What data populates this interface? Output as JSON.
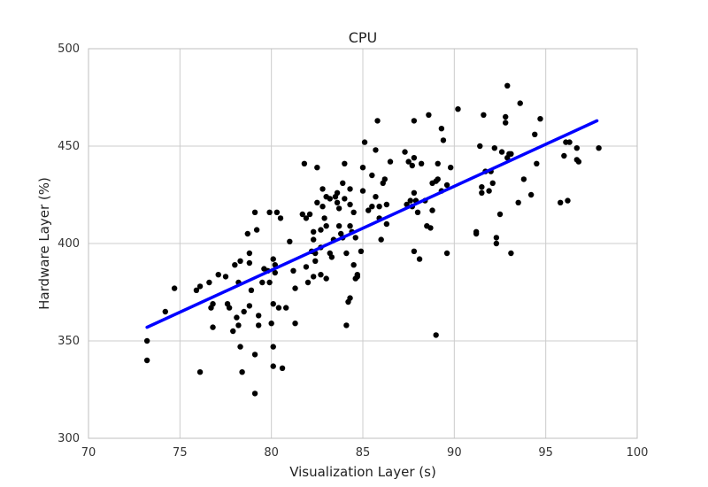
{
  "chart_data": {
    "type": "scatter",
    "title": "CPU",
    "xlabel": "Visualization Layer (s)",
    "ylabel": "Hardware Layer (%)",
    "xlim": [
      70,
      100
    ],
    "ylim": [
      300,
      500
    ],
    "xticks": [
      70,
      75,
      80,
      85,
      90,
      95,
      100
    ],
    "yticks": [
      300,
      350,
      400,
      450,
      500
    ],
    "grid": true,
    "legend": "none",
    "colors": {
      "points": "#000000",
      "fit_line": "#0000ff",
      "grid": "#cccccc",
      "frame": "#bfbfbf"
    },
    "series": [
      {
        "kind": "scatter",
        "points": [
          [
            73.2,
            350
          ],
          [
            73.2,
            340
          ],
          [
            74.2,
            365
          ],
          [
            74.7,
            377
          ],
          [
            75.9,
            376
          ],
          [
            76.1,
            378
          ],
          [
            76.1,
            334
          ],
          [
            76.6,
            380
          ],
          [
            76.7,
            367
          ],
          [
            76.8,
            369
          ],
          [
            76.8,
            357
          ],
          [
            77.1,
            384
          ],
          [
            77.5,
            383
          ],
          [
            77.6,
            369
          ],
          [
            77.7,
            367
          ],
          [
            77.9,
            355
          ],
          [
            78.0,
            389
          ],
          [
            78.1,
            362
          ],
          [
            78.2,
            358
          ],
          [
            78.2,
            380
          ],
          [
            78.3,
            391
          ],
          [
            78.3,
            347
          ],
          [
            78.4,
            334
          ],
          [
            78.5,
            365
          ],
          [
            78.7,
            405
          ],
          [
            78.8,
            390
          ],
          [
            78.8,
            395
          ],
          [
            78.8,
            368
          ],
          [
            78.9,
            376
          ],
          [
            79.1,
            416
          ],
          [
            79.2,
            407
          ],
          [
            79.1,
            343
          ],
          [
            79.1,
            323
          ],
          [
            79.3,
            363
          ],
          [
            79.3,
            358
          ],
          [
            79.5,
            380
          ],
          [
            79.6,
            387
          ],
          [
            79.8,
            386
          ],
          [
            79.9,
            380
          ],
          [
            79.9,
            416
          ],
          [
            80.0,
            359
          ],
          [
            80.1,
            392
          ],
          [
            80.1,
            369
          ],
          [
            80.1,
            337
          ],
          [
            80.1,
            347
          ],
          [
            80.2,
            389
          ],
          [
            80.2,
            385
          ],
          [
            80.3,
            416
          ],
          [
            80.4,
            367
          ],
          [
            80.5,
            413
          ],
          [
            80.6,
            336
          ],
          [
            80.8,
            367
          ],
          [
            81.0,
            401
          ],
          [
            81.2,
            386
          ],
          [
            81.3,
            359
          ],
          [
            81.3,
            377
          ],
          [
            81.7,
            415
          ],
          [
            81.8,
            441
          ],
          [
            81.9,
            388
          ],
          [
            81.9,
            413
          ],
          [
            82.0,
            380
          ],
          [
            82.1,
            415
          ],
          [
            82.2,
            396
          ],
          [
            82.3,
            402
          ],
          [
            82.3,
            406
          ],
          [
            82.3,
            383
          ],
          [
            82.4,
            391
          ],
          [
            82.4,
            395
          ],
          [
            82.5,
            421
          ],
          [
            82.5,
            439
          ],
          [
            82.7,
            407
          ],
          [
            82.7,
            384
          ],
          [
            82.7,
            398
          ],
          [
            82.8,
            428
          ],
          [
            82.8,
            419
          ],
          [
            82.9,
            413
          ],
          [
            83.0,
            382
          ],
          [
            83.0,
            409
          ],
          [
            83.0,
            424
          ],
          [
            83.2,
            423
          ],
          [
            83.2,
            395
          ],
          [
            83.3,
            393
          ],
          [
            83.4,
            402
          ],
          [
            83.5,
            424
          ],
          [
            83.6,
            426
          ],
          [
            83.6,
            421
          ],
          [
            83.7,
            418
          ],
          [
            83.7,
            409
          ],
          [
            83.8,
            405
          ],
          [
            83.9,
            431
          ],
          [
            83.9,
            403
          ],
          [
            84.0,
            423
          ],
          [
            84.0,
            441
          ],
          [
            84.1,
            395
          ],
          [
            84.1,
            358
          ],
          [
            84.2,
            370
          ],
          [
            84.3,
            372
          ],
          [
            84.3,
            409
          ],
          [
            84.3,
            428
          ],
          [
            84.3,
            420
          ],
          [
            84.4,
            406
          ],
          [
            84.5,
            416
          ],
          [
            84.5,
            389
          ],
          [
            84.6,
            382
          ],
          [
            84.6,
            403
          ],
          [
            84.7,
            383
          ],
          [
            84.7,
            384
          ],
          [
            84.9,
            396
          ],
          [
            85.0,
            427
          ],
          [
            85.0,
            439
          ],
          [
            85.1,
            452
          ],
          [
            85.3,
            417
          ],
          [
            85.5,
            435
          ],
          [
            85.5,
            419
          ],
          [
            85.7,
            448
          ],
          [
            85.7,
            424
          ],
          [
            85.8,
            463
          ],
          [
            85.9,
            413
          ],
          [
            85.9,
            419
          ],
          [
            86.0,
            402
          ],
          [
            86.1,
            431
          ],
          [
            86.2,
            433
          ],
          [
            86.3,
            410
          ],
          [
            86.3,
            420
          ],
          [
            86.5,
            442
          ],
          [
            87.3,
            447
          ],
          [
            87.4,
            420
          ],
          [
            87.5,
            442
          ],
          [
            87.6,
            422
          ],
          [
            87.7,
            419
          ],
          [
            87.7,
            440
          ],
          [
            87.8,
            463
          ],
          [
            87.8,
            396
          ],
          [
            87.8,
            444
          ],
          [
            87.8,
            426
          ],
          [
            87.9,
            422
          ],
          [
            88.0,
            416
          ],
          [
            88.1,
            392
          ],
          [
            88.2,
            441
          ],
          [
            88.4,
            422
          ],
          [
            88.5,
            409
          ],
          [
            88.6,
            466
          ],
          [
            88.7,
            408
          ],
          [
            88.8,
            417
          ],
          [
            88.8,
            431
          ],
          [
            89.0,
            432
          ],
          [
            89.0,
            353
          ],
          [
            89.1,
            433
          ],
          [
            89.1,
            441
          ],
          [
            89.3,
            427
          ],
          [
            89.3,
            459
          ],
          [
            89.4,
            453
          ],
          [
            89.6,
            395
          ],
          [
            89.6,
            430
          ],
          [
            89.8,
            439
          ],
          [
            90.2,
            469
          ],
          [
            91.2,
            405
          ],
          [
            91.2,
            406
          ],
          [
            91.4,
            450
          ],
          [
            91.5,
            429
          ],
          [
            91.5,
            426
          ],
          [
            91.6,
            466
          ],
          [
            91.7,
            437
          ],
          [
            91.9,
            427
          ],
          [
            92.0,
            437
          ],
          [
            92.1,
            431
          ],
          [
            92.2,
            449
          ],
          [
            92.3,
            403
          ],
          [
            92.3,
            400
          ],
          [
            92.5,
            415
          ],
          [
            92.6,
            447
          ],
          [
            92.8,
            465
          ],
          [
            92.8,
            462
          ],
          [
            92.9,
            481
          ],
          [
            92.9,
            444
          ],
          [
            93.0,
            446
          ],
          [
            93.1,
            446
          ],
          [
            93.1,
            395
          ],
          [
            93.5,
            421
          ],
          [
            93.6,
            472
          ],
          [
            93.8,
            433
          ],
          [
            94.2,
            425
          ],
          [
            94.4,
            456
          ],
          [
            94.5,
            441
          ],
          [
            94.7,
            464
          ],
          [
            95.8,
            421
          ],
          [
            96.0,
            445
          ],
          [
            96.1,
            452
          ],
          [
            96.2,
            422
          ],
          [
            96.3,
            452
          ],
          [
            96.7,
            443
          ],
          [
            96.7,
            449
          ],
          [
            96.8,
            442
          ],
          [
            97.9,
            449
          ]
        ]
      },
      {
        "kind": "regression-line",
        "points": [
          [
            73.2,
            357
          ],
          [
            97.8,
            463
          ]
        ]
      }
    ]
  }
}
